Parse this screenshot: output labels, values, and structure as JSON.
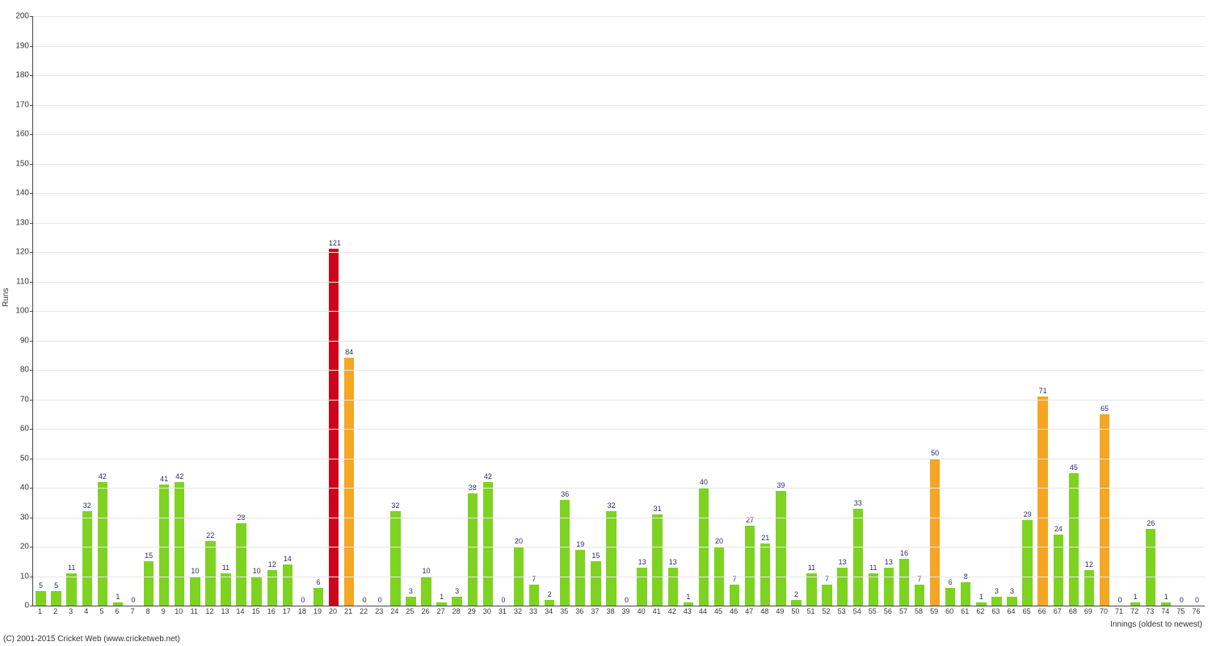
{
  "chart": {
    "type": "bar",
    "y_axis_title": "Runs",
    "x_axis_title": "Innings (oldest to newest)",
    "ylim": [
      0,
      200
    ],
    "ytick_step": 10,
    "grid_color": "#e6e6e6",
    "axis_color": "#444444",
    "background_color": "#ffffff",
    "bar_label_color": "#2a2a66",
    "tick_label_fontsize": 10,
    "bar_label_fontsize": 9,
    "bar_gap_ratio": 0.35,
    "colors": {
      "low": "#7ed321",
      "fifty": "#f5a623",
      "hundred": "#d0021b"
    },
    "copyright": "(C) 2001-2015 Cricket Web (www.cricketweb.net)",
    "values": [
      5,
      5,
      11,
      32,
      42,
      1,
      0,
      15,
      41,
      42,
      10,
      22,
      11,
      28,
      10,
      12,
      14,
      0,
      6,
      121,
      84,
      0,
      0,
      32,
      3,
      10,
      1,
      3,
      38,
      42,
      0,
      20,
      7,
      2,
      36,
      19,
      15,
      32,
      0,
      13,
      31,
      13,
      1,
      40,
      20,
      7,
      27,
      21,
      39,
      2,
      11,
      7,
      13,
      33,
      11,
      13,
      16,
      7,
      50,
      6,
      8,
      1,
      3,
      3,
      29,
      71,
      24,
      45,
      12,
      65,
      0,
      1,
      26,
      1,
      0,
      0
    ]
  }
}
